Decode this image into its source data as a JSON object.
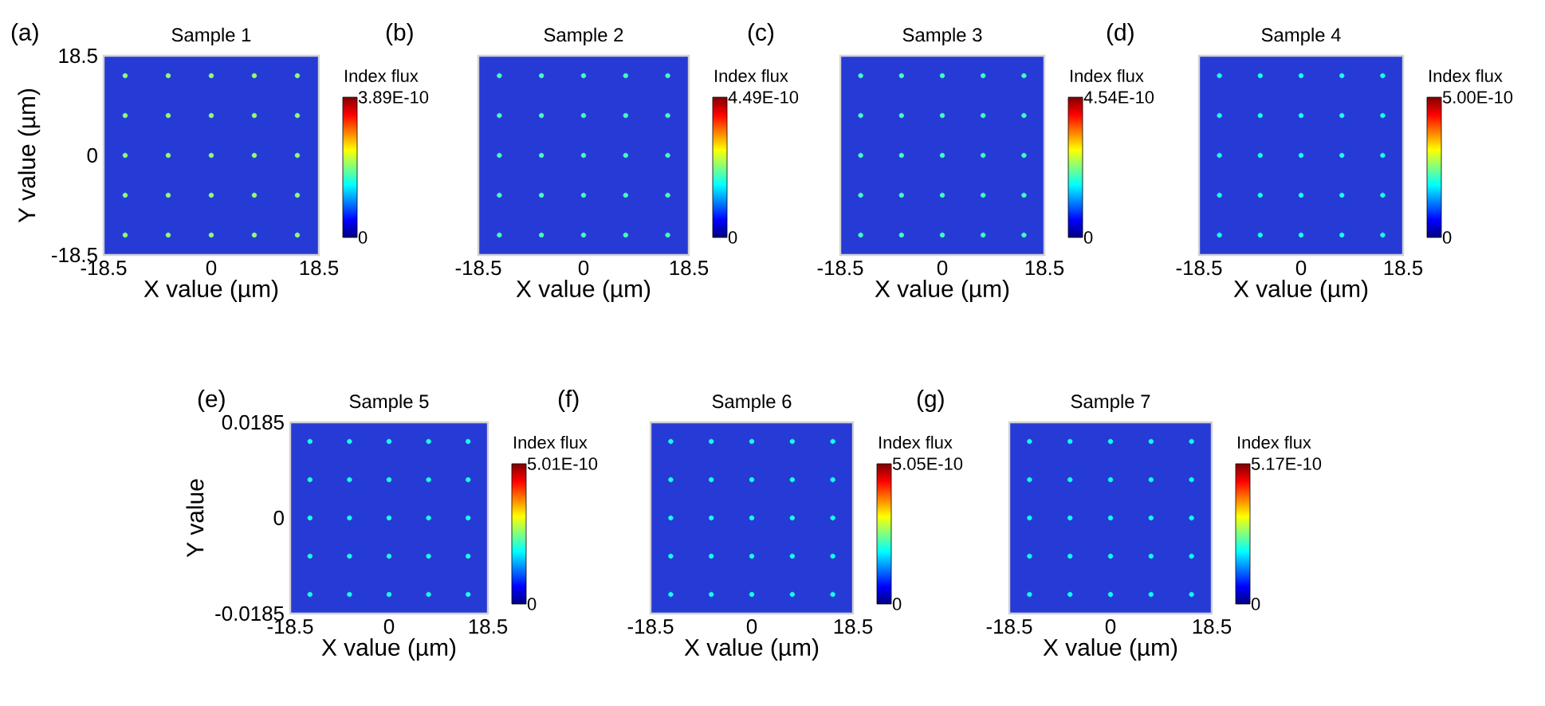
{
  "chart_data": [
    {
      "type": "scatter",
      "title": "Sample 1",
      "xlabel": "X value (µm)",
      "ylabel": "Y value (µm)",
      "clabel": "Index flux",
      "annotations": [
        "(a)"
      ],
      "marker": "circle",
      "x": [
        -14.8,
        -7.4,
        0,
        7.4,
        14.8,
        -14.8,
        -7.4,
        0,
        7.4,
        14.8,
        -14.8,
        -7.4,
        0,
        7.4,
        14.8,
        -14.8,
        -7.4,
        0,
        7.4,
        14.8,
        -14.8,
        -7.4,
        0,
        7.4,
        14.8
      ],
      "values": [
        14.8,
        14.8,
        14.8,
        14.8,
        14.8,
        7.4,
        7.4,
        7.4,
        7.4,
        7.4,
        0,
        0,
        0,
        0,
        0,
        -7.4,
        -7.4,
        -7.4,
        -7.4,
        -7.4,
        -14.8,
        -14.8,
        -14.8,
        -14.8,
        -14.8
      ],
      "cvalues": [
        2e-10,
        2e-10,
        2e-10,
        2e-10,
        2e-10,
        2e-10,
        2e-10,
        2e-10,
        2e-10,
        2e-10,
        2e-10,
        2e-10,
        2e-10,
        2e-10,
        2e-10,
        2e-10,
        2e-10,
        2e-10,
        2e-10,
        2e-10,
        2e-10,
        2e-10,
        2e-10,
        2e-10,
        2e-10
      ],
      "xlim": [
        -18.5,
        18.5
      ],
      "xticks": [
        -18.5,
        0,
        18.5
      ],
      "ylim": [
        -18.5,
        18.5
      ],
      "yticks": [
        -18.5,
        0,
        18.5
      ],
      "clim": [
        0,
        3.89e-10
      ],
      "cticks": [
        {
          "value": 0,
          "label": "0"
        },
        {
          "value": 3.89e-10,
          "label": "3.89E-10"
        }
      ]
    },
    {
      "type": "scatter",
      "title": "Sample 2",
      "xlabel": "X value (µm)",
      "clabel": "Index flux",
      "annotations": [
        "(b)"
      ],
      "marker": "circle",
      "tick_labels": "x",
      "x": [
        -14.8,
        -7.4,
        0,
        7.4,
        14.8,
        -14.8,
        -7.4,
        0,
        7.4,
        14.8,
        -14.8,
        -7.4,
        0,
        7.4,
        14.8,
        -14.8,
        -7.4,
        0,
        7.4,
        14.8,
        -14.8,
        -7.4,
        0,
        7.4,
        14.8
      ],
      "values": [
        14.8,
        14.8,
        14.8,
        14.8,
        14.8,
        7.4,
        7.4,
        7.4,
        7.4,
        7.4,
        0,
        0,
        0,
        0,
        0,
        -7.4,
        -7.4,
        -7.4,
        -7.4,
        -7.4,
        -14.8,
        -14.8,
        -14.8,
        -14.8,
        -14.8
      ],
      "cvalues": [
        2e-10,
        2e-10,
        2e-10,
        2e-10,
        2e-10,
        2e-10,
        2e-10,
        2e-10,
        2e-10,
        2e-10,
        2e-10,
        2e-10,
        2e-10,
        2e-10,
        2e-10,
        2e-10,
        2e-10,
        2e-10,
        2e-10,
        2e-10,
        2e-10,
        2e-10,
        2e-10,
        2e-10,
        2e-10
      ],
      "xlim": [
        -18.5,
        18.5
      ],
      "xticks": [
        -18.5,
        0,
        18.5
      ],
      "ylim": [
        -18.5,
        18.5
      ],
      "clim": [
        0,
        4.49e-10
      ],
      "cticks": [
        {
          "value": 0,
          "label": "0"
        },
        {
          "value": 4.49e-10,
          "label": "4.49E-10"
        }
      ]
    },
    {
      "type": "scatter",
      "title": "Sample 3",
      "xlabel": "X value (µm)",
      "clabel": "Index flux",
      "annotations": [
        "(c)"
      ],
      "marker": "circle",
      "tick_labels": "x",
      "x": [
        -14.8,
        -7.4,
        0,
        7.4,
        14.8,
        -14.8,
        -7.4,
        0,
        7.4,
        14.8,
        -14.8,
        -7.4,
        0,
        7.4,
        14.8,
        -14.8,
        -7.4,
        0,
        7.4,
        14.8,
        -14.8,
        -7.4,
        0,
        7.4,
        14.8
      ],
      "values": [
        14.8,
        14.8,
        14.8,
        14.8,
        14.8,
        7.4,
        7.4,
        7.4,
        7.4,
        7.4,
        0,
        0,
        0,
        0,
        0,
        -7.4,
        -7.4,
        -7.4,
        -7.4,
        -7.4,
        -14.8,
        -14.8,
        -14.8,
        -14.8,
        -14.8
      ],
      "cvalues": [
        2e-10,
        2e-10,
        2e-10,
        2e-10,
        2e-10,
        2e-10,
        2e-10,
        2e-10,
        2e-10,
        2e-10,
        2e-10,
        2e-10,
        2e-10,
        2e-10,
        2e-10,
        2e-10,
        2e-10,
        2e-10,
        2e-10,
        2e-10,
        2e-10,
        2e-10,
        2e-10,
        2e-10,
        2e-10
      ],
      "xlim": [
        -18.5,
        18.5
      ],
      "xticks": [
        -18.5,
        0,
        18.5
      ],
      "ylim": [
        -18.5,
        18.5
      ],
      "clim": [
        0,
        4.54e-10
      ],
      "cticks": [
        {
          "value": 0,
          "label": "0"
        },
        {
          "value": 4.54e-10,
          "label": "4.54E-10"
        }
      ]
    },
    {
      "type": "scatter",
      "title": "Sample 4",
      "xlabel": "X value (µm)",
      "clabel": "Index flux",
      "annotations": [
        "(d)"
      ],
      "marker": "circle",
      "tick_labels": "x",
      "x": [
        -14.8,
        -7.4,
        0,
        7.4,
        14.8,
        -14.8,
        -7.4,
        0,
        7.4,
        14.8,
        -14.8,
        -7.4,
        0,
        7.4,
        14.8,
        -14.8,
        -7.4,
        0,
        7.4,
        14.8,
        -14.8,
        -7.4,
        0,
        7.4,
        14.8
      ],
      "values": [
        14.8,
        14.8,
        14.8,
        14.8,
        14.8,
        7.4,
        7.4,
        7.4,
        7.4,
        7.4,
        0,
        0,
        0,
        0,
        0,
        -7.4,
        -7.4,
        -7.4,
        -7.4,
        -7.4,
        -14.8,
        -14.8,
        -14.8,
        -14.8,
        -14.8
      ],
      "cvalues": [
        2e-10,
        2e-10,
        2e-10,
        2e-10,
        2e-10,
        2e-10,
        2e-10,
        2e-10,
        2e-10,
        2e-10,
        2e-10,
        2e-10,
        2e-10,
        2e-10,
        2e-10,
        2e-10,
        2e-10,
        2e-10,
        2e-10,
        2e-10,
        2e-10,
        2e-10,
        2e-10,
        2e-10,
        2e-10
      ],
      "xlim": [
        -18.5,
        18.5
      ],
      "xticks": [
        -18.5,
        0,
        18.5
      ],
      "ylim": [
        -18.5,
        18.5
      ],
      "clim": [
        0,
        5e-10
      ],
      "cticks": [
        {
          "value": 0,
          "label": "0"
        },
        {
          "value": 5e-10,
          "label": "5.00E-10"
        }
      ]
    },
    {
      "type": "scatter",
      "title": "Sample 5",
      "xlabel": "X value (µm)",
      "ylabel": "Y value",
      "clabel": "Index flux",
      "annotations": [
        "(e)"
      ],
      "marker": "circle",
      "x": [
        -14.8,
        -7.4,
        0,
        7.4,
        14.8,
        -14.8,
        -7.4,
        0,
        7.4,
        14.8,
        -14.8,
        -7.4,
        0,
        7.4,
        14.8,
        -14.8,
        -7.4,
        0,
        7.4,
        14.8,
        -14.8,
        -7.4,
        0,
        7.4,
        14.8
      ],
      "values": [
        0.0148,
        0.0148,
        0.0148,
        0.0148,
        0.0148,
        0.0074,
        0.0074,
        0.0074,
        0.0074,
        0.0074,
        0,
        0,
        0,
        0,
        0,
        -0.0074,
        -0.0074,
        -0.0074,
        -0.0074,
        -0.0074,
        -0.0148,
        -0.0148,
        -0.0148,
        -0.0148,
        -0.0148
      ],
      "cvalues": [
        2e-10,
        2e-10,
        2e-10,
        2e-10,
        2e-10,
        2e-10,
        2e-10,
        2e-10,
        2e-10,
        2e-10,
        2e-10,
        2e-10,
        2e-10,
        2e-10,
        2e-10,
        2e-10,
        2e-10,
        2e-10,
        2e-10,
        2e-10,
        2e-10,
        2e-10,
        2e-10,
        2e-10,
        2e-10
      ],
      "xlim": [
        -18.5,
        18.5
      ],
      "xticks": [
        -18.5,
        0,
        18.5
      ],
      "ylim": [
        -0.0185,
        0.0185
      ],
      "yticks": [
        -0.0185,
        0,
        0.0185
      ],
      "clim": [
        0,
        5.01e-10
      ],
      "cticks": [
        {
          "value": 0,
          "label": "0"
        },
        {
          "value": 5.01e-10,
          "label": "5.01E-10"
        }
      ]
    },
    {
      "type": "scatter",
      "title": "Sample 6",
      "xlabel": "X value (µm)",
      "clabel": "Index flux",
      "annotations": [
        "(f)"
      ],
      "marker": "circle",
      "tick_labels": "x",
      "x": [
        -14.8,
        -7.4,
        0,
        7.4,
        14.8,
        -14.8,
        -7.4,
        0,
        7.4,
        14.8,
        -14.8,
        -7.4,
        0,
        7.4,
        14.8,
        -14.8,
        -7.4,
        0,
        7.4,
        14.8,
        -14.8,
        -7.4,
        0,
        7.4,
        14.8
      ],
      "values": [
        0.0148,
        0.0148,
        0.0148,
        0.0148,
        0.0148,
        0.0074,
        0.0074,
        0.0074,
        0.0074,
        0.0074,
        0,
        0,
        0,
        0,
        0,
        -0.0074,
        -0.0074,
        -0.0074,
        -0.0074,
        -0.0074,
        -0.0148,
        -0.0148,
        -0.0148,
        -0.0148,
        -0.0148
      ],
      "cvalues": [
        2e-10,
        2e-10,
        2e-10,
        2e-10,
        2e-10,
        2e-10,
        2e-10,
        2e-10,
        2e-10,
        2e-10,
        2e-10,
        2e-10,
        2e-10,
        2e-10,
        2e-10,
        2e-10,
        2e-10,
        2e-10,
        2e-10,
        2e-10,
        2e-10,
        2e-10,
        2e-10,
        2e-10,
        2e-10
      ],
      "xlim": [
        -18.5,
        18.5
      ],
      "xticks": [
        -18.5,
        0,
        18.5
      ],
      "ylim": [
        -0.0185,
        0.0185
      ],
      "clim": [
        0,
        5.05e-10
      ],
      "cticks": [
        {
          "value": 0,
          "label": "0"
        },
        {
          "value": 5.05e-10,
          "label": "5.05E-10"
        }
      ]
    },
    {
      "type": "scatter",
      "title": "Sample 7",
      "xlabel": "X value (µm)",
      "clabel": "Index flux",
      "annotations": [
        "(g)"
      ],
      "marker": "circle",
      "tick_labels": "x",
      "x": [
        -14.8,
        -7.4,
        0,
        7.4,
        14.8,
        -14.8,
        -7.4,
        0,
        7.4,
        14.8,
        -14.8,
        -7.4,
        0,
        7.4,
        14.8,
        -14.8,
        -7.4,
        0,
        7.4,
        14.8,
        -14.8,
        -7.4,
        0,
        7.4,
        14.8
      ],
      "values": [
        0.0148,
        0.0148,
        0.0148,
        0.0148,
        0.0148,
        0.0074,
        0.0074,
        0.0074,
        0.0074,
        0.0074,
        0,
        0,
        0,
        0,
        0,
        -0.0074,
        -0.0074,
        -0.0074,
        -0.0074,
        -0.0074,
        -0.0148,
        -0.0148,
        -0.0148,
        -0.0148,
        -0.0148
      ],
      "cvalues": [
        2e-10,
        2e-10,
        2e-10,
        2e-10,
        2e-10,
        2e-10,
        2e-10,
        2e-10,
        2e-10,
        2e-10,
        2e-10,
        2e-10,
        2e-10,
        2e-10,
        2e-10,
        2e-10,
        2e-10,
        2e-10,
        2e-10,
        2e-10,
        2e-10,
        2e-10,
        2e-10,
        2e-10,
        2e-10
      ],
      "xlim": [
        -18.5,
        18.5
      ],
      "xticks": [
        -18.5,
        0,
        18.5
      ],
      "ylim": [
        -0.0185,
        0.0185
      ],
      "clim": [
        0,
        5.17e-10
      ],
      "cticks": [
        {
          "value": 0,
          "label": "0"
        },
        {
          "value": 5.17e-10,
          "label": "5.17E-10"
        }
      ]
    }
  ]
}
